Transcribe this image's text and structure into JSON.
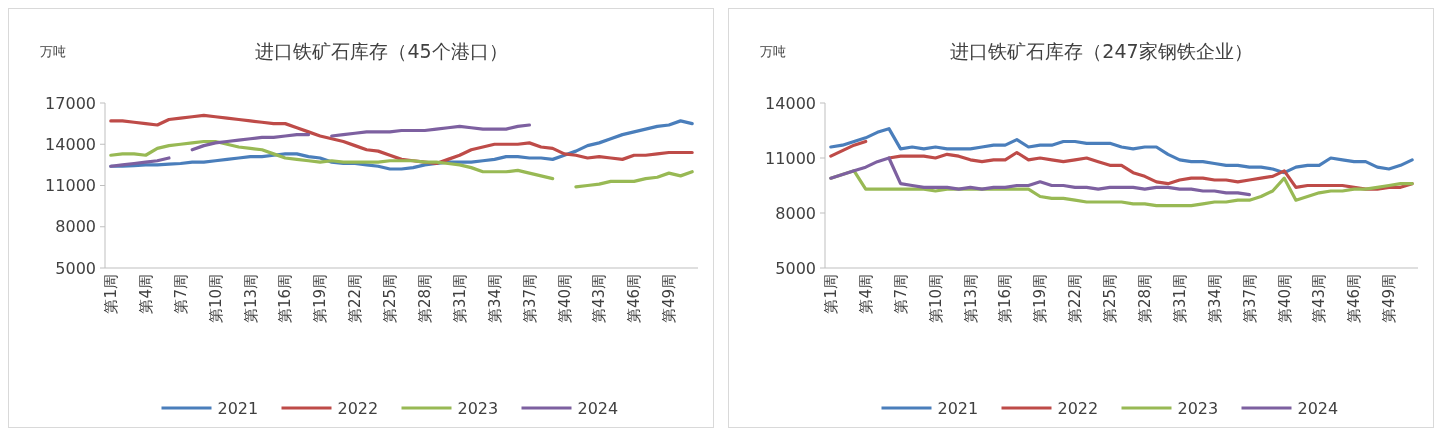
{
  "chart_data": [
    {
      "type": "line",
      "title": "进口铁矿石库存（45个港口）",
      "ylabel": "万吨",
      "categories": [
        "第1周",
        null,
        null,
        "第4周",
        null,
        null,
        "第7周",
        null,
        null,
        "第10周",
        null,
        null,
        "第13周",
        null,
        null,
        "第16周",
        null,
        null,
        "第19周",
        null,
        null,
        "第22周",
        null,
        null,
        "第25周",
        null,
        null,
        "第28周",
        null,
        null,
        "第31周",
        null,
        null,
        "第34周",
        null,
        null,
        "第37周",
        null,
        null,
        "第40周",
        null,
        null,
        "第43周",
        null,
        null,
        "第46周",
        null,
        null,
        "第49周",
        null,
        null
      ],
      "ylim": [
        5000,
        17000
      ],
      "yticks": [
        5000,
        8000,
        11000,
        14000,
        17000
      ],
      "grid": false,
      "legend": "bottom",
      "series": [
        {
          "name": "2021",
          "color": "#4a7ebb",
          "values": [
            12400,
            12400,
            12450,
            12500,
            12500,
            12550,
            12600,
            12700,
            12700,
            12800,
            12900,
            13000,
            13100,
            13100,
            13200,
            13300,
            13300,
            13100,
            13000,
            12700,
            12600,
            12600,
            12500,
            12400,
            12200,
            12200,
            12300,
            12500,
            12600,
            12700,
            12700,
            12700,
            12800,
            12900,
            13100,
            13100,
            13000,
            13000,
            12900,
            13200,
            13500,
            13900,
            14100,
            14400,
            14700,
            14900,
            15100,
            15300,
            15400,
            15700,
            15500
          ]
        },
        {
          "name": "2022",
          "color": "#be4b48",
          "values": [
            15700,
            15700,
            15600,
            15500,
            15400,
            15800,
            15900,
            16000,
            16100,
            16000,
            15900,
            15800,
            15700,
            15600,
            15500,
            15500,
            15200,
            14900,
            14600,
            14400,
            14200,
            13900,
            13600,
            13500,
            13200,
            12900,
            12800,
            12700,
            12600,
            12900,
            13200,
            13600,
            13800,
            14000,
            14000,
            14000,
            14100,
            13800,
            13700,
            13300,
            13200,
            13000,
            13100,
            13000,
            12900,
            13200,
            13200,
            13300,
            13400,
            13400,
            13400
          ]
        },
        {
          "name": "2023",
          "color": "#98b954",
          "values": [
            13200,
            13300,
            13300,
            13200,
            13700,
            13900,
            14000,
            14100,
            14200,
            14200,
            14000,
            13800,
            13700,
            13600,
            13300,
            13000,
            12900,
            12800,
            12700,
            12800,
            12700,
            12700,
            12700,
            12700,
            12800,
            12800,
            12800,
            12700,
            12700,
            12600,
            12500,
            12300,
            12000,
            12000,
            12000,
            12100,
            11900,
            11700,
            11500,
            null,
            10900,
            11000,
            11100,
            11300,
            11300,
            11300,
            11500,
            11600,
            11900,
            11700,
            12000
          ]
        },
        {
          "name": "2024",
          "color": "#7d60a0",
          "values": [
            12400,
            12500,
            12600,
            12700,
            12800,
            13000,
            null,
            13600,
            13900,
            14100,
            14200,
            14300,
            14400,
            14500,
            14500,
            14600,
            14700,
            14700,
            null,
            14600,
            14700,
            14800,
            14900,
            14900,
            14900,
            15000,
            15000,
            15000,
            15100,
            15200,
            15300,
            15200,
            15100,
            15100,
            15100,
            15300,
            15400,
            null,
            null,
            null,
            null,
            null,
            null,
            null,
            null,
            null,
            null,
            null,
            null,
            null,
            null
          ]
        }
      ]
    },
    {
      "type": "line",
      "title": "进口铁矿石库存（247家钢铁企业）",
      "ylabel": "万吨",
      "categories": [
        "第1周",
        null,
        null,
        "第4周",
        null,
        null,
        "第7周",
        null,
        null,
        "第10周",
        null,
        null,
        "第13周",
        null,
        null,
        "第16周",
        null,
        null,
        "第19周",
        null,
        null,
        "第22周",
        null,
        null,
        "第25周",
        null,
        null,
        "第28周",
        null,
        null,
        "第31周",
        null,
        null,
        "第34周",
        null,
        null,
        "第37周",
        null,
        null,
        "第40周",
        null,
        null,
        "第43周",
        null,
        null,
        "第46周",
        null,
        null,
        "第49周",
        null,
        null
      ],
      "ylim": [
        5000,
        14000
      ],
      "yticks": [
        5000,
        8000,
        11000,
        14000
      ],
      "grid": false,
      "legend": "bottom",
      "series": [
        {
          "name": "2021",
          "color": "#4a7ebb",
          "values": [
            11600,
            11700,
            11900,
            12100,
            12400,
            12600,
            11500,
            11600,
            11500,
            11600,
            11500,
            11500,
            11500,
            11600,
            11700,
            11700,
            12000,
            11600,
            11700,
            11700,
            11900,
            11900,
            11800,
            11800,
            11800,
            11600,
            11500,
            11600,
            11600,
            11200,
            10900,
            10800,
            10800,
            10700,
            10600,
            10600,
            10500,
            10500,
            10400,
            10200,
            10500,
            10600,
            10600,
            11000,
            10900,
            10800,
            10800,
            10500,
            10400,
            10600,
            10900
          ]
        },
        {
          "name": "2022",
          "color": "#be4b48",
          "values": [
            11100,
            11400,
            11700,
            11900,
            null,
            11000,
            11100,
            11100,
            11100,
            11000,
            11200,
            11100,
            10900,
            10800,
            10900,
            10900,
            11300,
            10900,
            11000,
            10900,
            10800,
            10900,
            11000,
            10800,
            10600,
            10600,
            10200,
            10000,
            9700,
            9600,
            9800,
            9900,
            9900,
            9800,
            9800,
            9700,
            9800,
            9900,
            10000,
            10300,
            9400,
            9500,
            9500,
            9500,
            9500,
            9400,
            9300,
            9300,
            9400,
            9400,
            9600
          ]
        },
        {
          "name": "2023",
          "color": "#98b954",
          "values": [
            9900,
            10100,
            10300,
            9300,
            9300,
            9300,
            9300,
            9300,
            9300,
            9200,
            9300,
            9300,
            9300,
            9300,
            9300,
            9300,
            9300,
            9300,
            8900,
            8800,
            8800,
            8700,
            8600,
            8600,
            8600,
            8600,
            8500,
            8500,
            8400,
            8400,
            8400,
            8400,
            8500,
            8600,
            8600,
            8700,
            8700,
            8900,
            9200,
            9900,
            8700,
            8900,
            9100,
            9200,
            9200,
            9300,
            9300,
            9400,
            9500,
            9600,
            9600
          ]
        },
        {
          "name": "2024",
          "color": "#7d60a0",
          "values": [
            9900,
            10100,
            10300,
            10500,
            10800,
            11000,
            9600,
            9500,
            9400,
            9400,
            9400,
            9300,
            9400,
            9300,
            9400,
            9400,
            9500,
            9500,
            9700,
            9500,
            9500,
            9400,
            9400,
            9300,
            9400,
            9400,
            9400,
            9300,
            9400,
            9400,
            9300,
            9300,
            9200,
            9200,
            9100,
            9100,
            9000,
            null,
            null,
            null,
            null,
            null,
            null,
            null,
            null,
            null,
            null,
            null,
            null,
            null,
            null
          ]
        }
      ]
    }
  ]
}
